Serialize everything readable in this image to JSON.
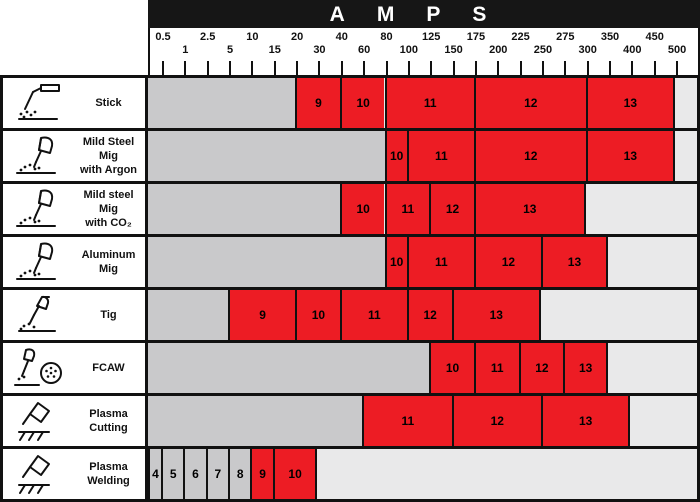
{
  "chart_data": {
    "type": "table",
    "title": "AMPS",
    "x_axis_label": "AMPS",
    "x_ticks": [
      0.5,
      1,
      2.5,
      5,
      10,
      15,
      20,
      30,
      40,
      60,
      80,
      100,
      125,
      150,
      175,
      200,
      225,
      250,
      275,
      300,
      350,
      400,
      450,
      500
    ],
    "legend_note": "",
    "rows": [
      {
        "process": "Stick",
        "label_lines": [
          "Stick"
        ],
        "icon": "stick-electrode-icon",
        "segments": [
          {
            "shade": "9",
            "from": 20,
            "to": 40,
            "color": "red"
          },
          {
            "shade": "10",
            "from": 40,
            "to": 80,
            "color": "red"
          },
          {
            "shade": "11",
            "from": 80,
            "to": 175,
            "color": "red"
          },
          {
            "shade": "12",
            "from": 175,
            "to": 300,
            "color": "red"
          },
          {
            "shade": "13",
            "from": 300,
            "to": 500,
            "color": "red"
          }
        ]
      },
      {
        "process": "Mild Steel Mig with Argon",
        "label_lines": [
          "Mild Steel Mig",
          "with Argon"
        ],
        "icon": "mig-gun-icon",
        "segments": [
          {
            "shade": "10",
            "from": 80,
            "to": 100,
            "color": "red"
          },
          {
            "shade": "11",
            "from": 100,
            "to": 175,
            "color": "red"
          },
          {
            "shade": "12",
            "from": 175,
            "to": 300,
            "color": "red"
          },
          {
            "shade": "13",
            "from": 300,
            "to": 500,
            "color": "red"
          }
        ]
      },
      {
        "process": "Mild steel Mig with CO₂",
        "label_lines": [
          "Mild steel Mig",
          "with CO₂"
        ],
        "icon": "mig-gun-icon",
        "segments": [
          {
            "shade": "10",
            "from": 40,
            "to": 80,
            "color": "red"
          },
          {
            "shade": "11",
            "from": 80,
            "to": 125,
            "color": "red"
          },
          {
            "shade": "12",
            "from": 125,
            "to": 175,
            "color": "red"
          },
          {
            "shade": "13",
            "from": 175,
            "to": 300,
            "color": "red"
          }
        ]
      },
      {
        "process": "Aluminum Mig",
        "label_lines": [
          "Aluminum",
          "Mig"
        ],
        "icon": "mig-gun-icon",
        "segments": [
          {
            "shade": "10",
            "from": 80,
            "to": 100,
            "color": "red"
          },
          {
            "shade": "11",
            "from": 100,
            "to": 175,
            "color": "red"
          },
          {
            "shade": "12",
            "from": 175,
            "to": 250,
            "color": "red"
          },
          {
            "shade": "13",
            "from": 250,
            "to": 350,
            "color": "red"
          }
        ]
      },
      {
        "process": "Tig",
        "label_lines": [
          "Tig"
        ],
        "icon": "tig-torch-icon",
        "segments": [
          {
            "shade": "9",
            "from": 5,
            "to": 20,
            "color": "red"
          },
          {
            "shade": "10",
            "from": 20,
            "to": 40,
            "color": "red"
          },
          {
            "shade": "11",
            "from": 40,
            "to": 100,
            "color": "red"
          },
          {
            "shade": "12",
            "from": 100,
            "to": 150,
            "color": "red"
          },
          {
            "shade": "13",
            "from": 150,
            "to": 250,
            "color": "red"
          }
        ]
      },
      {
        "process": "FCAW",
        "label_lines": [
          "FCAW"
        ],
        "icon": "fcaw-gun-spool-icon",
        "segments": [
          {
            "shade": "10",
            "from": 125,
            "to": 175,
            "color": "red"
          },
          {
            "shade": "11",
            "from": 175,
            "to": 225,
            "color": "red"
          },
          {
            "shade": "12",
            "from": 225,
            "to": 275,
            "color": "red"
          },
          {
            "shade": "13",
            "from": 275,
            "to": 350,
            "color": "red"
          }
        ]
      },
      {
        "process": "Plasma Cutting",
        "label_lines": [
          "Plasma",
          "Cutting"
        ],
        "icon": "plasma-torch-icon",
        "segments": [
          {
            "shade": "11",
            "from": 60,
            "to": 150,
            "color": "red"
          },
          {
            "shade": "12",
            "from": 150,
            "to": 250,
            "color": "red"
          },
          {
            "shade": "13",
            "from": 250,
            "to": 400,
            "color": "red"
          }
        ]
      },
      {
        "process": "Plasma Welding",
        "label_lines": [
          "Plasma",
          "Welding"
        ],
        "icon": "plasma-torch-icon",
        "segments": [
          {
            "shade": "4",
            "from": "min",
            "to": 0.5,
            "color": "gray"
          },
          {
            "shade": "5",
            "from": 0.5,
            "to": 1,
            "color": "gray"
          },
          {
            "shade": "6",
            "from": 1,
            "to": 2.5,
            "color": "gray"
          },
          {
            "shade": "7",
            "from": 2.5,
            "to": 5,
            "color": "gray"
          },
          {
            "shade": "8",
            "from": 5,
            "to": 10,
            "color": "gray"
          },
          {
            "shade": "9",
            "from": 10,
            "to": 15,
            "color": "red"
          },
          {
            "shade": "10",
            "from": 15,
            "to": 30,
            "color": "red"
          }
        ]
      }
    ]
  },
  "colors": {
    "shade_block_red": "#ed1c24",
    "unused_left_gray": "#c9c9cb",
    "unused_right_gray": "#e9e9ea",
    "line_black": "#111111",
    "header_bar_black": "#161616"
  }
}
